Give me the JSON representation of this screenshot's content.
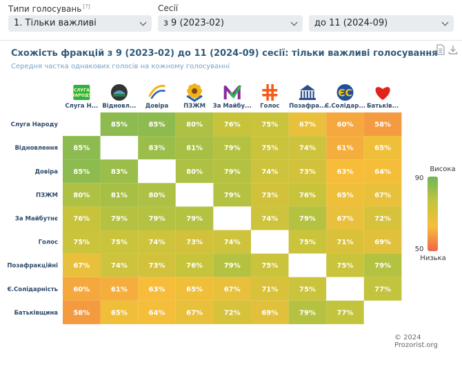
{
  "filters": {
    "type_label": "Типи голосувань",
    "type_help": "[?]",
    "type_value": "1. Тільки важливі",
    "sessions_label": "Сесії",
    "session_from": "з 9 (2023-02)",
    "session_to": "до 11 (2024-09)"
  },
  "header": {
    "title": "Схожість фракцій з 9 (2023-02) до 11 (2024-09) сесії: тільки важливі голосування",
    "subtitle": "Середня частка однакових голосів на кожному голосуванні"
  },
  "icons": {
    "download": "document-icon",
    "export": "download-icon"
  },
  "credit": "© 2024 Prozorist.org",
  "chart_data": {
    "type": "heatmap",
    "column_labels": [
      "Слуга Н...",
      "Відновл...",
      "Довіра",
      "ПЗЖМ",
      "За Майбу...",
      "Голос",
      "Позафра...",
      "Є.Солідар...",
      "Батьків..."
    ],
    "row_labels": [
      "Слуга Народу",
      "Відновлення",
      "Довіра",
      "ПЗЖМ",
      "За Майбутнє",
      "Голос",
      "Позафракційні",
      "Є.Солідарність",
      "Батьківщина"
    ],
    "values": [
      [
        null,
        85,
        85,
        80,
        76,
        75,
        67,
        60,
        58
      ],
      [
        85,
        null,
        83,
        81,
        79,
        75,
        74,
        61,
        65
      ],
      [
        85,
        83,
        null,
        80,
        79,
        74,
        73,
        63,
        64
      ],
      [
        80,
        81,
        80,
        null,
        79,
        73,
        76,
        65,
        67
      ],
      [
        76,
        79,
        79,
        79,
        null,
        74,
        79,
        67,
        72
      ],
      [
        75,
        75,
        74,
        73,
        74,
        null,
        75,
        71,
        69
      ],
      [
        67,
        74,
        73,
        76,
        79,
        75,
        null,
        75,
        79
      ],
      [
        60,
        61,
        63,
        65,
        67,
        71,
        75,
        null,
        77
      ],
      [
        58,
        65,
        64,
        67,
        72,
        69,
        79,
        77,
        null
      ]
    ],
    "unit": "%",
    "color_scale": {
      "min": 50,
      "max": 90,
      "low_label": "Низька",
      "high_label": "Висока",
      "colors": [
        "#f2644a",
        "#f6be3a",
        "#c4c43c",
        "#6eb65a"
      ]
    },
    "party_logos": [
      {
        "icon": "sluha-narodu-logo",
        "color": "#2db34a",
        "text": "СЛУГА НАРОДУ"
      },
      {
        "icon": "vidnovlennia-logo",
        "color": "#333333"
      },
      {
        "icon": "dovira-logo",
        "color": "#f5b21a"
      },
      {
        "icon": "pzzhm-logo",
        "color": "#f2b21a"
      },
      {
        "icon": "za-maibutnie-logo",
        "color": "#8b2a9b"
      },
      {
        "icon": "holos-logo",
        "color": "#f25c1b"
      },
      {
        "icon": "parliament-logo",
        "color": "#2c4f8a"
      },
      {
        "icon": "yes-logo",
        "color": "#1e4f9c",
        "text": "ЄС"
      },
      {
        "icon": "batkivshchyna-logo",
        "color": "#e2231a"
      }
    ]
  }
}
